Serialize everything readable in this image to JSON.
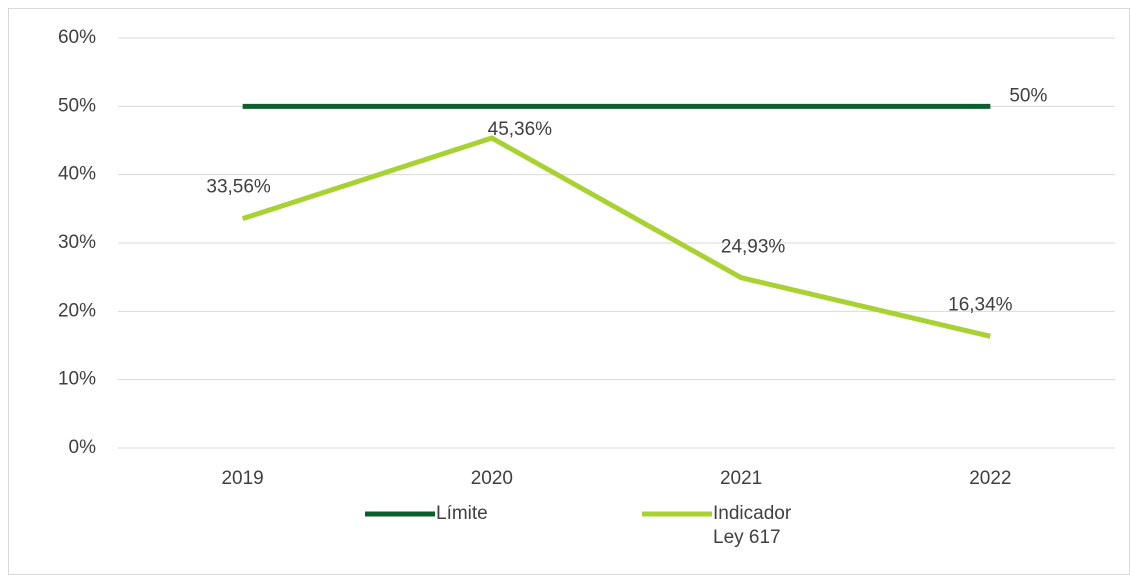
{
  "chart_data": {
    "type": "line",
    "categories": [
      "2019",
      "2020",
      "2021",
      "2022"
    ],
    "series": [
      {
        "name": "Límite",
        "color": "#0c5f2c",
        "values": [
          50,
          50,
          50,
          50
        ],
        "value_labels": [
          null,
          null,
          null,
          "50%"
        ]
      },
      {
        "name": "Indicador Ley 617",
        "color": "#a8d231",
        "values": [
          33.56,
          45.36,
          24.93,
          16.34
        ],
        "value_labels": [
          "33,56%",
          "45,36%",
          "24,93%",
          "16,34%"
        ]
      }
    ],
    "ylim": [
      0,
      60
    ],
    "yticks": [
      {
        "value": 0,
        "label": "0%"
      },
      {
        "value": 10,
        "label": "10%"
      },
      {
        "value": 20,
        "label": "20%"
      },
      {
        "value": 30,
        "label": "30%"
      },
      {
        "value": 40,
        "label": "40%"
      },
      {
        "value": 50,
        "label": "50%"
      },
      {
        "value": 60,
        "label": "60%"
      }
    ],
    "grid": true,
    "legend": "bottom"
  }
}
